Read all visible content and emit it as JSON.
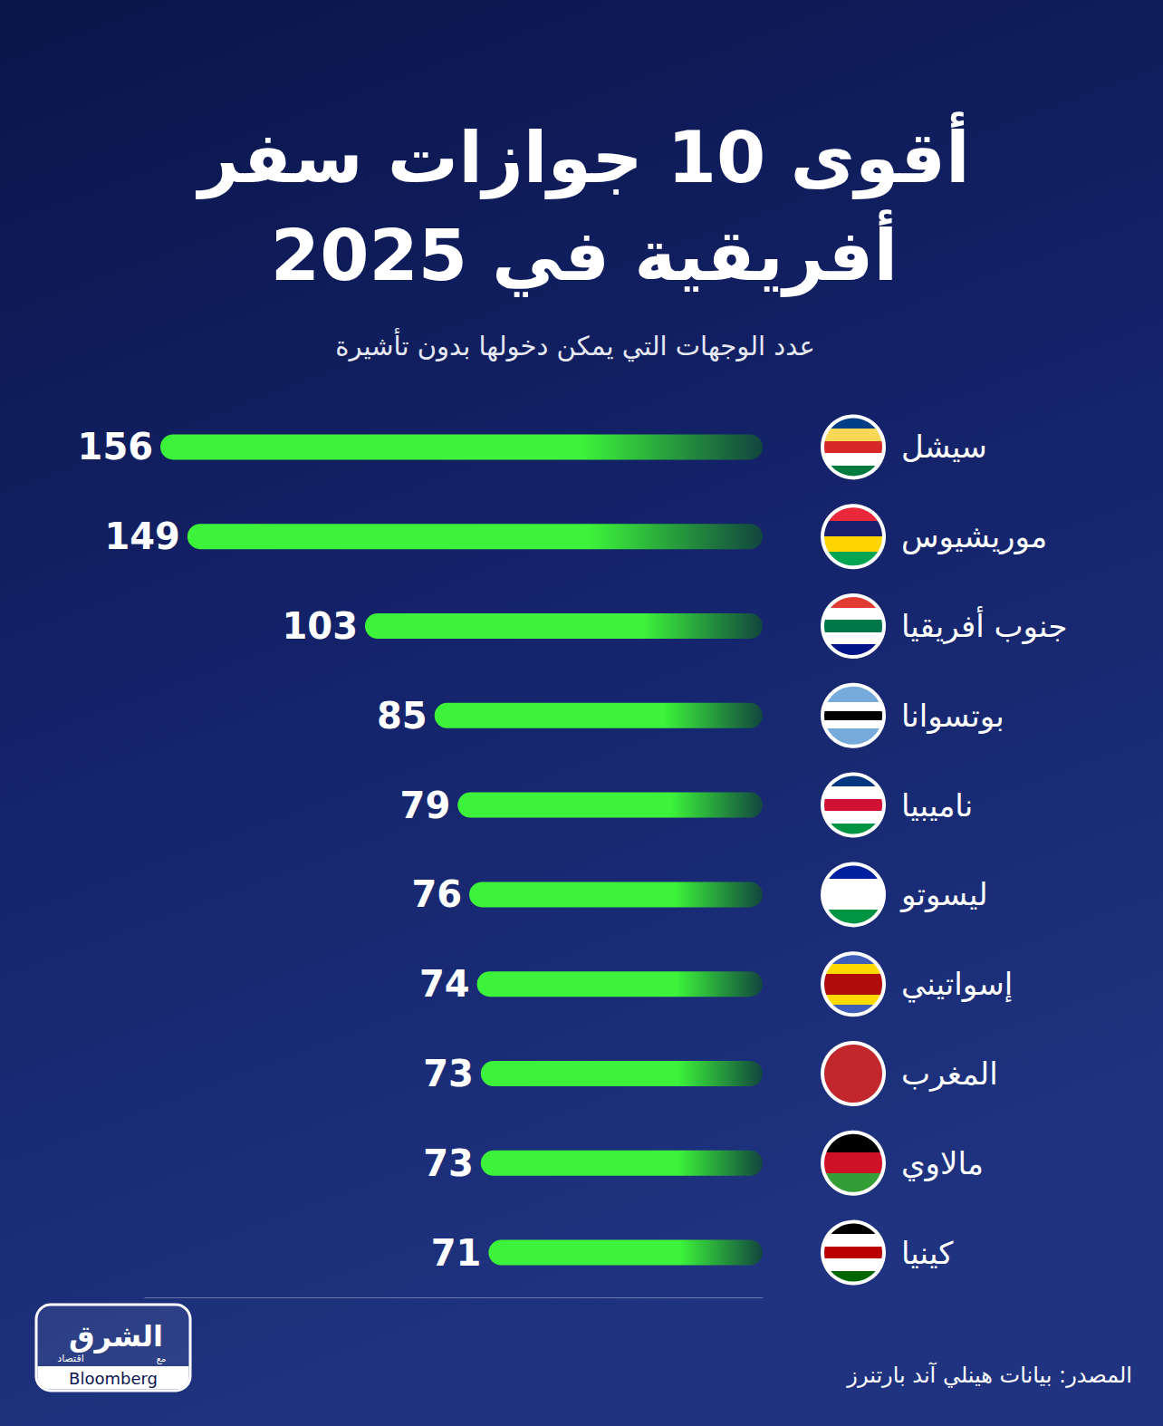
{
  "chart_data": {
    "type": "bar",
    "title": "أقوى 10 جوازات سفر\nأفريقية في 2025",
    "subtitle": "عدد الوجهات التي يمكن دخولها بدون تأشيرة",
    "categories": [
      "سيشل",
      "موريشيوس",
      "جنوب أفريقيا",
      "بوتسوانا",
      "ناميبيا",
      "ليسوتو",
      "إسواتيني",
      "المغرب",
      "مالاوي",
      "كينيا"
    ],
    "values": [
      156,
      149,
      103,
      85,
      79,
      76,
      74,
      73,
      73,
      71
    ],
    "color": "#3cf23a",
    "orientation": "horizontal",
    "data_labels": true,
    "tick_labels": "y",
    "grid": false,
    "xlim": [
      0,
      160
    ],
    "source": "المصدر: بيانات هينلي آند بارتنرز",
    "logo": {
      "name": "الشرق",
      "sub": "اقتصاد",
      "with": "مع",
      "partner": "Bloomberg"
    }
  }
}
